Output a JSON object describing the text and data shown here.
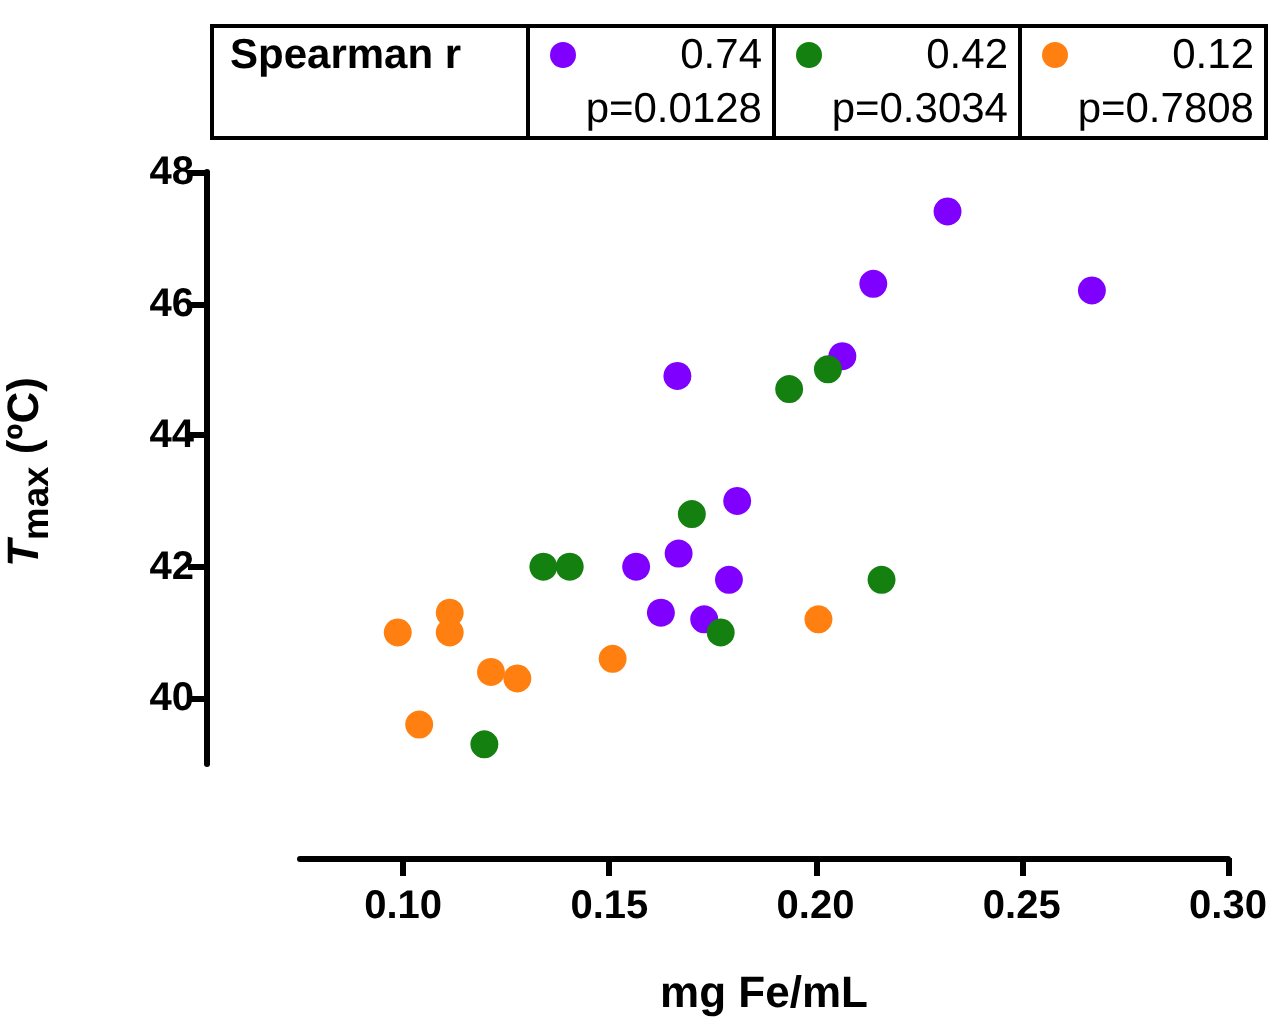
{
  "chart_data": {
    "type": "scatter",
    "xlabel": "mg Fe/mL",
    "ylabel": "T$_{max}$ (ºC)",
    "xlim": [
      0.075,
      0.3
    ],
    "xticks": [
      {
        "value": 0.1,
        "label": "0.10"
      },
      {
        "value": 0.15,
        "label": "0.15"
      },
      {
        "value": 0.2,
        "label": "0.20"
      },
      {
        "value": 0.25,
        "label": "0.25"
      },
      {
        "value": 0.3,
        "label": "0.30"
      }
    ],
    "ylim": [
      39,
      48
    ],
    "yticks": [
      40,
      42,
      44,
      46,
      48
    ],
    "grid": false,
    "marker": "circle",
    "annotations": [
      "Spearman r",
      "0.74",
      "p=0.0128",
      "0.42",
      "p=0.3034",
      "0.12",
      "p=0.7808"
    ],
    "series": [
      {
        "color": "#8000ff",
        "x": [
          0.232,
          0.214,
          0.267,
          0.2065,
          0.181,
          0.179,
          0.173,
          0.1665,
          0.1565,
          0.1668,
          0.1625
        ],
        "values": [
          47.4,
          46.3,
          46.2,
          45.2,
          43.0,
          41.8,
          41.2,
          44.9,
          42.0,
          42.2,
          41.3
        ]
      },
      {
        "color": "#138010",
        "x": [
          0.203,
          0.1936,
          0.17,
          0.216,
          0.177,
          0.134,
          0.1404,
          0.1197
        ],
        "values": [
          45.0,
          44.7,
          42.8,
          41.8,
          41.0,
          42.0,
          42.0,
          39.3
        ]
      },
      {
        "color": "#ff8010",
        "x": [
          0.2007,
          0.0987,
          0.1113,
          0.1113,
          0.1213,
          0.1277,
          0.1039,
          0.1508
        ],
        "values": [
          41.2,
          41.0,
          41.3,
          41.0,
          40.4,
          40.3,
          39.6,
          40.6
        ]
      }
    ]
  }
}
